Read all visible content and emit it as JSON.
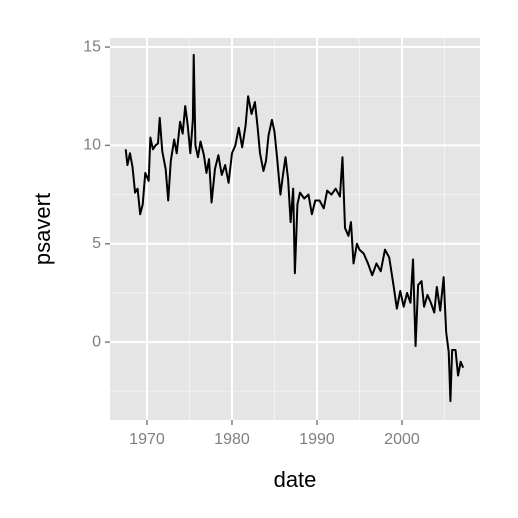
{
  "chart_data": {
    "type": "line",
    "x_label": "date",
    "y_label": "psavert",
    "x": [
      1967.5,
      1967.7,
      1968.0,
      1968.3,
      1968.6,
      1968.9,
      1969.2,
      1969.5,
      1969.8,
      1970.2,
      1970.4,
      1970.7,
      1971.0,
      1971.3,
      1971.5,
      1971.8,
      1972.2,
      1972.5,
      1972.8,
      1973.2,
      1973.5,
      1973.9,
      1974.2,
      1974.5,
      1974.8,
      1975.1,
      1975.4,
      1975.5,
      1975.7,
      1976.0,
      1976.3,
      1976.7,
      1977.0,
      1977.3,
      1977.6,
      1978.0,
      1978.4,
      1978.8,
      1979.2,
      1979.6,
      1980.0,
      1980.4,
      1980.8,
      1981.2,
      1981.6,
      1981.9,
      1982.3,
      1982.7,
      1983.0,
      1983.3,
      1983.7,
      1984.0,
      1984.3,
      1984.7,
      1985.0,
      1985.3,
      1985.7,
      1986.0,
      1986.3,
      1986.6,
      1986.9,
      1987.2,
      1987.4,
      1987.7,
      1988.0,
      1988.5,
      1989.0,
      1989.4,
      1989.8,
      1990.3,
      1990.8,
      1991.2,
      1991.7,
      1992.2,
      1992.7,
      1993.0,
      1993.3,
      1993.7,
      1994.0,
      1994.3,
      1994.7,
      1995.0,
      1995.5,
      1996.0,
      1996.5,
      1997.0,
      1997.5,
      1998.0,
      1998.5,
      1999.0,
      1999.4,
      1999.8,
      2000.2,
      2000.6,
      2001.0,
      2001.3,
      2001.6,
      2001.9,
      2002.3,
      2002.6,
      2003.0,
      2003.4,
      2003.8,
      2004.1,
      2004.5,
      2004.9,
      2005.2,
      2005.5,
      2005.7,
      2005.9,
      2006.3,
      2006.6,
      2006.9,
      2007.2
    ],
    "series": [
      {
        "name": "psavert",
        "color": "#000000",
        "values": [
          9.8,
          9.0,
          9.6,
          8.9,
          7.6,
          7.8,
          6.5,
          7.0,
          8.6,
          8.2,
          10.4,
          9.8,
          10.0,
          10.1,
          11.4,
          9.7,
          8.8,
          7.2,
          9.2,
          10.3,
          9.6,
          11.2,
          10.6,
          12.0,
          11.0,
          9.6,
          11.3,
          14.6,
          10.0,
          9.4,
          10.2,
          9.5,
          8.6,
          9.3,
          7.1,
          8.8,
          9.5,
          8.5,
          9.0,
          8.1,
          9.6,
          10.0,
          10.9,
          9.9,
          11.0,
          12.5,
          11.6,
          12.2,
          11.0,
          9.6,
          8.7,
          9.2,
          10.5,
          11.3,
          10.7,
          9.4,
          7.5,
          8.5,
          9.4,
          8.3,
          6.1,
          7.8,
          3.5,
          7.0,
          7.6,
          7.3,
          7.5,
          6.5,
          7.2,
          7.2,
          6.8,
          7.7,
          7.5,
          7.8,
          7.4,
          9.4,
          5.8,
          5.4,
          6.1,
          4.0,
          5.0,
          4.7,
          4.5,
          4.0,
          3.4,
          4.0,
          3.6,
          4.7,
          4.3,
          2.9,
          1.7,
          2.6,
          1.8,
          2.5,
          2.0,
          4.2,
          -0.2,
          2.9,
          3.1,
          1.8,
          2.4,
          2.0,
          1.5,
          2.8,
          1.6,
          3.3,
          0.5,
          -0.5,
          -3.0,
          -0.4,
          -0.4,
          -1.7,
          -1.0,
          -1.3
        ]
      }
    ],
    "xlim": [
      1965.65,
      2009.18
    ],
    "xticks": [
      1970,
      1980,
      1990,
      2000
    ],
    "ylim": [
      -3.96,
      15.46
    ],
    "yticks": [
      0,
      5,
      10,
      15
    ],
    "grid": true,
    "background": "#e5e5e5"
  }
}
